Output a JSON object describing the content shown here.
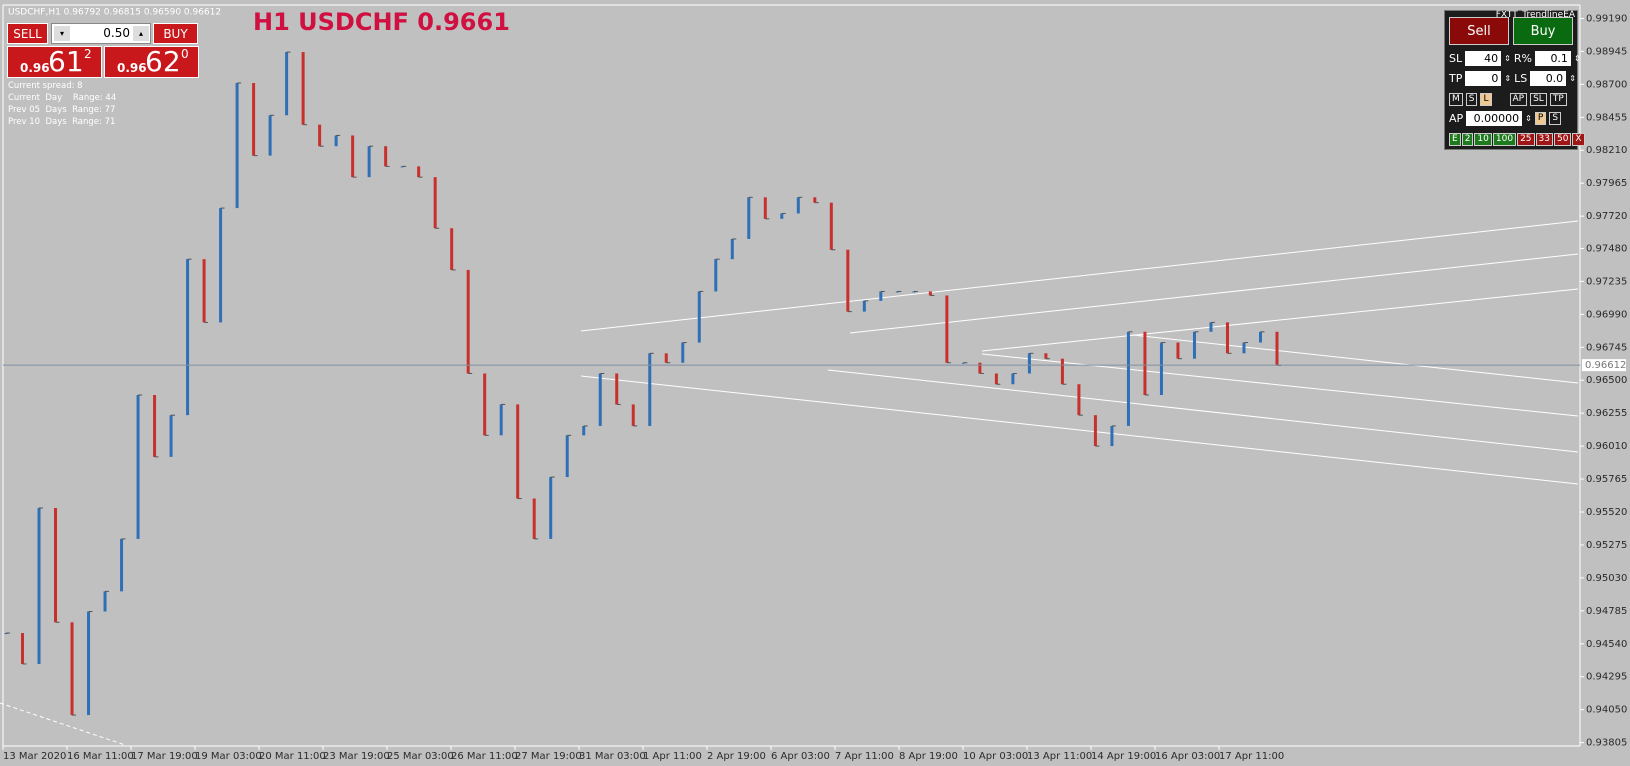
{
  "header": {
    "symbol_line": "USDCHF,H1  0.96792 0.96815 0.96590 0.96612",
    "title": "H1 USDCHF 0.9661"
  },
  "trade_panel": {
    "sell": "SELL",
    "buy": "BUY",
    "lots": "0.50",
    "bid_prefix": "0.96",
    "bid_big": "61",
    "bid_small": "2",
    "ask_prefix": "0.96",
    "ask_big": "62",
    "ask_small": "0"
  },
  "info": [
    "Current spread: 8",
    "Current  Day    Range: 44",
    "Prev 05  Days  Range: 77",
    "Prev 10  Days  Range: 71"
  ],
  "ea_panel": {
    "name": "FXTT_TrendlineEA",
    "sell": "Sell",
    "buy": "Buy",
    "sl_label": "SL",
    "sl": "40",
    "r_label": "R%",
    "r": "0.1",
    "tp_label": "TP",
    "tp": "0",
    "ls_label": "LS",
    "ls": "0.0",
    "mode_buttons": [
      "M",
      "S",
      "L"
    ],
    "line_buttons": [
      "AP",
      "SL",
      "TP"
    ],
    "ap_label": "AP",
    "ap": "0.00000",
    "p": "P",
    "s": "S",
    "green_buttons": [
      "E",
      "2",
      "10",
      "100"
    ],
    "red_buttons": [
      "25",
      "33",
      "50",
      "X"
    ]
  },
  "chart_data": {
    "type": "bars",
    "values": [
      0.9462,
      0.9439,
      0.9555,
      0.947,
      0.9401,
      0.9478,
      0.9493,
      0.9532,
      0.9639,
      0.9593,
      0.9624,
      0.974,
      0.9693,
      0.9778,
      0.9871,
      0.9817,
      0.9847,
      0.9894,
      0.984,
      0.9824,
      0.9832,
      0.9801,
      0.9824,
      0.9809,
      0.9809,
      0.9801,
      0.9763,
      0.9732,
      0.9655,
      0.9609,
      0.9632,
      0.9562,
      0.9532,
      0.9578,
      0.9609,
      0.9616,
      0.9655,
      0.9632,
      0.9616,
      0.967,
      0.9663,
      0.9678,
      0.9716,
      0.974,
      0.9755,
      0.9786,
      0.977,
      0.9774,
      0.9786,
      0.9782,
      0.9747,
      0.9701,
      0.9709,
      0.9716,
      0.9716,
      0.9716,
      0.9713,
      0.9663,
      0.9663,
      0.9655,
      0.9647,
      0.9655,
      0.967,
      0.9666,
      0.9647,
      0.9624,
      0.9601,
      0.9616,
      0.9686,
      0.9639,
      0.9678,
      0.9666,
      0.9686,
      0.9693,
      0.967,
      0.9678,
      0.9686,
      0.9661
    ],
    "up_color": "#2f6fb5",
    "down_color": "#c8302c",
    "x_labels": [
      "13 Mar 2020",
      "16 Mar 11:00",
      "17 Mar 19:00",
      "19 Mar 03:00",
      "20 Mar 11:00",
      "23 Mar 19:00",
      "25 Mar 03:00",
      "26 Mar 11:00",
      "27 Mar 19:00",
      "31 Mar 03:00",
      "1 Apr 11:00",
      "2 Apr 19:00",
      "6 Apr 03:00",
      "7 Apr 11:00",
      "8 Apr 19:00",
      "10 Apr 03:00",
      "13 Apr 11:00",
      "14 Apr 19:00",
      "16 Apr 03:00",
      "17 Apr 11:00"
    ],
    "ylim": [
      0.9378,
      0.9929
    ],
    "yticks": [
      {
        "value": 0.9919,
        "label": "0.99190"
      },
      {
        "value": 0.98945,
        "label": "0.98945"
      },
      {
        "value": 0.987,
        "label": "0.98700"
      },
      {
        "value": 0.98455,
        "label": "0.98455"
      },
      {
        "value": 0.9821,
        "label": "0.98210"
      },
      {
        "value": 0.97965,
        "label": "0.97965"
      },
      {
        "value": 0.9772,
        "label": "0.97720"
      },
      {
        "value": 0.9748,
        "label": "0.97480"
      },
      {
        "value": 0.97235,
        "label": "0.97235"
      },
      {
        "value": 0.9699,
        "label": "0.96990"
      },
      {
        "value": 0.96745,
        "label": "0.96745"
      },
      {
        "value": 0.965,
        "label": "0.96500"
      },
      {
        "value": 0.96255,
        "label": "0.96255"
      },
      {
        "value": 0.9601,
        "label": "0.96010"
      },
      {
        "value": 0.95765,
        "label": "0.95765"
      },
      {
        "value": 0.9552,
        "label": "0.95520"
      },
      {
        "value": 0.95275,
        "label": "0.95275"
      },
      {
        "value": 0.9503,
        "label": "0.95030"
      },
      {
        "value": 0.94785,
        "label": "0.94785"
      },
      {
        "value": 0.9454,
        "label": "0.94540"
      },
      {
        "value": 0.94295,
        "label": "0.94295"
      },
      {
        "value": 0.9405,
        "label": "0.94050"
      },
      {
        "value": 0.93805,
        "label": "0.93805"
      }
    ],
    "current_price": {
      "value": 0.96612,
      "label": "0.96612"
    }
  }
}
